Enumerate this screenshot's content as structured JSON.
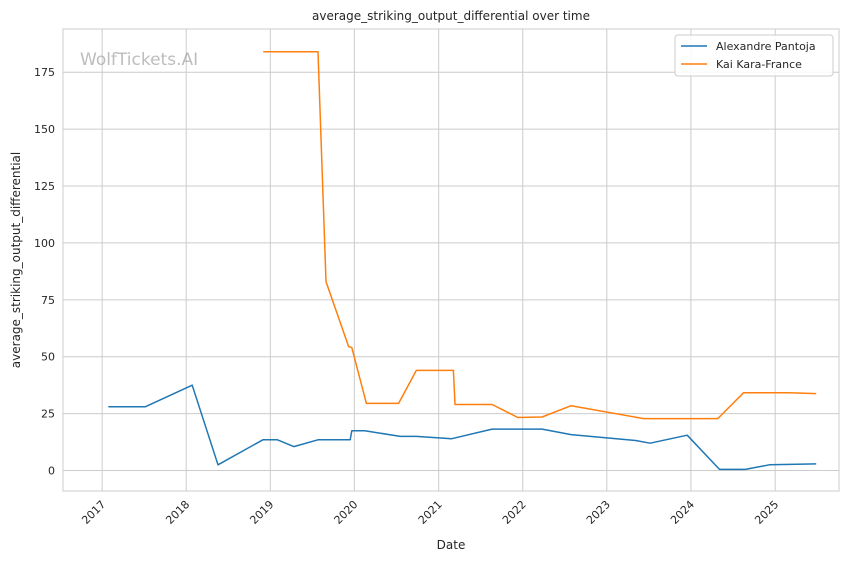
{
  "chart_data": {
    "type": "line",
    "title": "average_striking_output_differential over time",
    "xlabel": "Date",
    "ylabel": "average_striking_output_differential",
    "watermark": "WolfTickets.AI",
    "x_ticks": [
      "2017",
      "2018",
      "2019",
      "2020",
      "2021",
      "2022",
      "2023",
      "2024",
      "2025"
    ],
    "y_ticks": [
      0,
      25,
      50,
      75,
      100,
      125,
      150,
      175
    ],
    "xlim": [
      "2016-07-15",
      "2025-10-05"
    ],
    "ylim": [
      -9,
      194
    ],
    "grid": true,
    "legend_position": "top-right",
    "series": [
      {
        "name": "Alexandre Pantoja",
        "color": "#1f77b4",
        "points": [
          [
            "2017-01-28",
            28
          ],
          [
            "2017-07-07",
            28
          ],
          [
            "2018-01-27",
            37.5
          ],
          [
            "2018-05-19",
            2.5
          ],
          [
            "2018-11-30",
            13.5
          ],
          [
            "2019-02-01",
            13.5
          ],
          [
            "2019-04-13",
            10.5
          ],
          [
            "2019-07-27",
            13.5
          ],
          [
            "2019-12-14",
            13.5
          ],
          [
            "2019-12-21",
            17.5
          ],
          [
            "2020-02-15",
            17.5
          ],
          [
            "2020-07-18",
            15
          ],
          [
            "2020-09-26",
            15
          ],
          [
            "2021-02-27",
            14
          ],
          [
            "2021-08-21",
            18.2
          ],
          [
            "2022-03-26",
            18.2
          ],
          [
            "2022-07-30",
            15.8
          ],
          [
            "2023-05-06",
            13.2
          ],
          [
            "2023-07-08",
            12
          ],
          [
            "2023-12-16",
            15.5
          ],
          [
            "2024-05-04",
            0.5
          ],
          [
            "2024-08-24",
            0.5
          ],
          [
            "2024-12-07",
            2.5
          ],
          [
            "2025-06-28",
            2.9
          ]
        ]
      },
      {
        "name": "Kai Kara-France",
        "color": "#ff7f0e",
        "points": [
          [
            "2018-12-01",
            184
          ],
          [
            "2019-07-27",
            184
          ],
          [
            "2019-08-31",
            83
          ],
          [
            "2019-12-07",
            54.5
          ],
          [
            "2019-12-21",
            54
          ],
          [
            "2020-02-22",
            29.5
          ],
          [
            "2020-07-11",
            29.5
          ],
          [
            "2020-09-26",
            44
          ],
          [
            "2021-03-06",
            44
          ],
          [
            "2021-03-13",
            29
          ],
          [
            "2021-08-21",
            29
          ],
          [
            "2021-12-11",
            23.3
          ],
          [
            "2022-03-26",
            23.5
          ],
          [
            "2022-07-30",
            28.5
          ],
          [
            "2023-06-10",
            22.8
          ],
          [
            "2024-04-27",
            22.8
          ],
          [
            "2024-08-17",
            34.2
          ],
          [
            "2025-03-01",
            34.2
          ],
          [
            "2025-06-28",
            33.8
          ]
        ]
      }
    ]
  }
}
